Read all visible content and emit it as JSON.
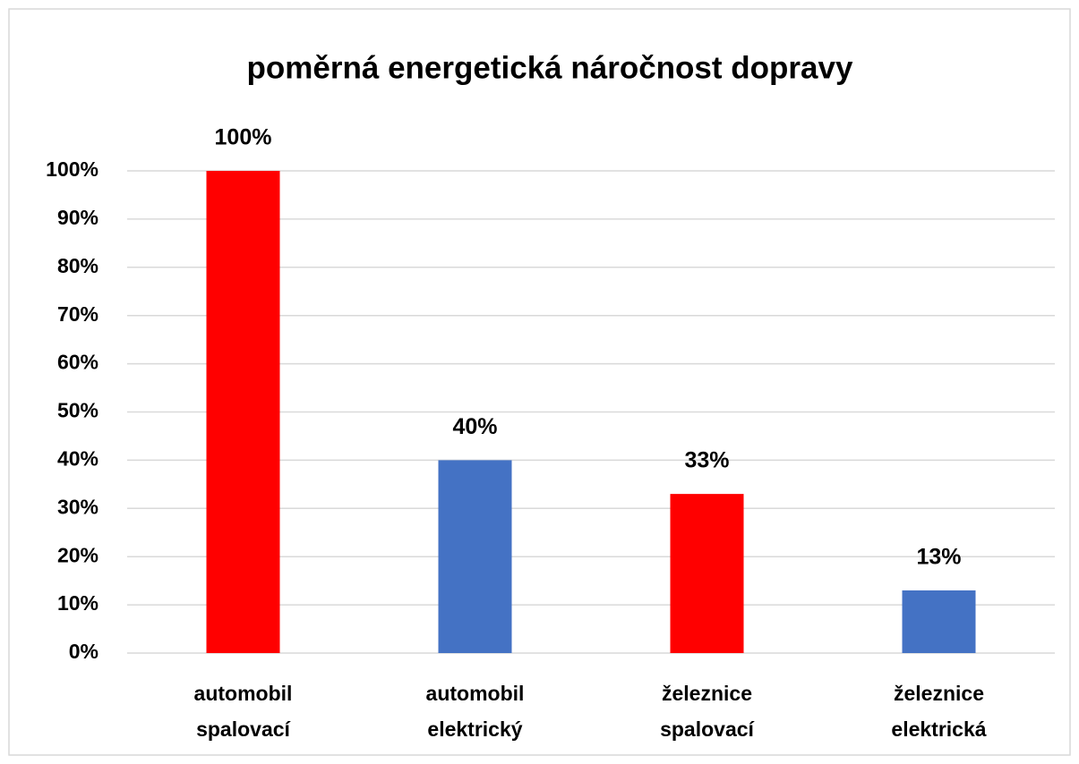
{
  "chart_data": {
    "type": "bar",
    "title": "poměrná energetická náročnost dopravy",
    "categories": [
      "automobil spalovací",
      "automobil elektrický",
      "železnice spalovací",
      "železnice elektrická"
    ],
    "values": [
      100,
      40,
      33,
      13
    ],
    "value_labels": [
      "100%",
      "40%",
      "33%",
      "13%"
    ],
    "colors": [
      "#ff0000",
      "#4472c4",
      "#ff0000",
      "#4472c4"
    ],
    "ylim": [
      0,
      100
    ],
    "yticks": [
      {
        "value": 0,
        "label": "0%"
      },
      {
        "value": 10,
        "label": "10%"
      },
      {
        "value": 20,
        "label": "20%"
      },
      {
        "value": 30,
        "label": "30%"
      },
      {
        "value": 40,
        "label": "40%"
      },
      {
        "value": 50,
        "label": "50%"
      },
      {
        "value": 60,
        "label": "60%"
      },
      {
        "value": 70,
        "label": "70%"
      },
      {
        "value": 80,
        "label": "80%"
      },
      {
        "value": 90,
        "label": "90%"
      },
      {
        "value": 100,
        "label": "100%"
      }
    ],
    "grid": true
  }
}
